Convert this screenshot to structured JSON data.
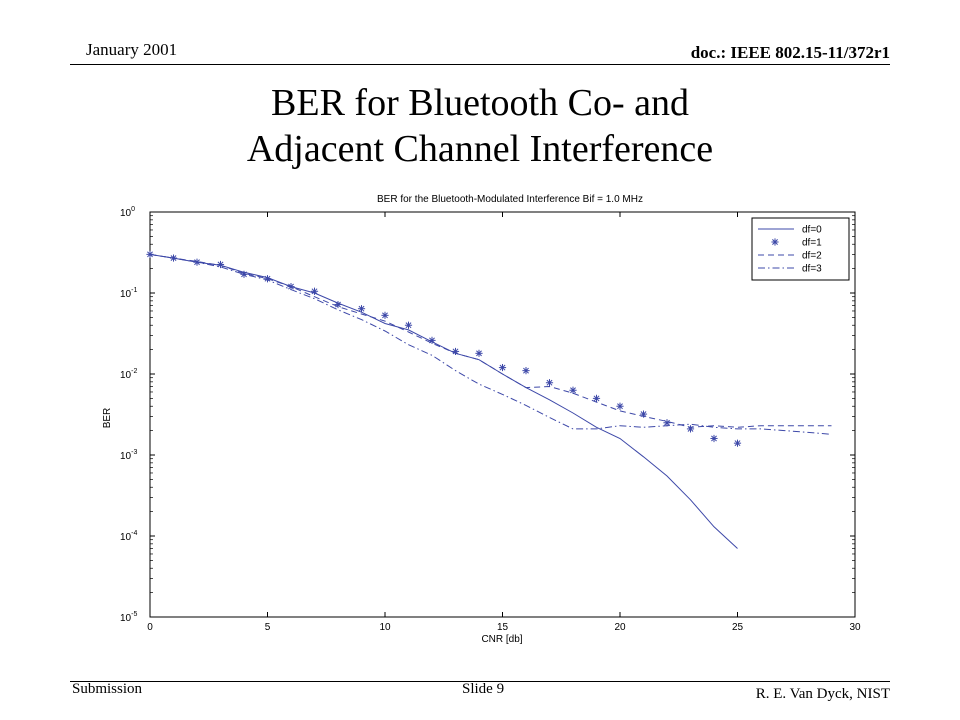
{
  "header": {
    "date": "January 2001",
    "doc": "doc.: IEEE 802.15-11/372r1"
  },
  "slide": {
    "title_line1": "BER for Bluetooth Co- and",
    "title_line2": "Adjacent Channel Interference"
  },
  "footer": {
    "submission": "Submission",
    "slide_number": "Slide 9",
    "author": "R. E. Van Dyck, NIST"
  },
  "chart_data": {
    "type": "line",
    "title": "BER for the Bluetooth-Modulated Interference Bif = 1.0 MHz",
    "xlabel": "CNR [db]",
    "ylabel": "BER",
    "xlim": [
      0,
      30
    ],
    "ylim": [
      1e-05,
      1
    ],
    "yscale": "log",
    "grid": false,
    "legend_position": "top-right",
    "color": "#3d48a8",
    "xticks": [
      "0",
      "5",
      "10",
      "15",
      "20",
      "25",
      "30"
    ],
    "yticks": [
      {
        "base": "10",
        "exp": "0"
      },
      {
        "base": "10",
        "exp": "-1"
      },
      {
        "base": "10",
        "exp": "-2"
      },
      {
        "base": "10",
        "exp": "-3"
      },
      {
        "base": "10",
        "exp": "-4"
      },
      {
        "base": "10",
        "exp": "-5"
      }
    ],
    "series": [
      {
        "name": "df=0",
        "style": "solid",
        "x": [
          0,
          1,
          2,
          3,
          4,
          5,
          6,
          7,
          8,
          9,
          10,
          11,
          12,
          13,
          14,
          15,
          16,
          17,
          18,
          19,
          20,
          21,
          22,
          23,
          24,
          25
        ],
        "y": [
          0.3,
          0.27,
          0.24,
          0.22,
          0.18,
          0.155,
          0.12,
          0.1,
          0.075,
          0.058,
          0.042,
          0.035,
          0.025,
          0.018,
          0.015,
          0.01,
          0.0068,
          0.0048,
          0.0033,
          0.0022,
          0.0016,
          0.00095,
          0.00055,
          0.00028,
          0.00013,
          7e-05
        ]
      },
      {
        "name": "df=1",
        "style": "star",
        "x": [
          0,
          1,
          2,
          3,
          4,
          5,
          6,
          7,
          8,
          9,
          10,
          11,
          12,
          13,
          14,
          15,
          16,
          17,
          18,
          19,
          20,
          21,
          22,
          23,
          24,
          25
        ],
        "y": [
          0.3,
          0.27,
          0.24,
          0.225,
          0.17,
          0.15,
          0.12,
          0.105,
          0.072,
          0.064,
          0.053,
          0.04,
          0.026,
          0.019,
          0.018,
          0.012,
          0.011,
          0.0078,
          0.0063,
          0.005,
          0.004,
          0.0032,
          0.0025,
          0.0021,
          0.0016,
          0.0014
        ]
      },
      {
        "name": "df=2",
        "style": "dashed",
        "x": [
          0,
          1,
          2,
          3,
          4,
          5,
          6,
          7,
          8,
          9,
          10,
          11,
          12,
          13,
          14,
          15,
          16,
          17,
          18,
          19,
          20,
          21,
          22,
          23,
          24,
          25,
          26,
          27,
          28,
          29
        ],
        "y": [
          0.3,
          0.27,
          0.245,
          0.22,
          0.175,
          0.15,
          0.12,
          0.09,
          0.068,
          0.055,
          0.045,
          0.033,
          0.024,
          0.018,
          0.015,
          0.01,
          0.0068,
          0.007,
          0.0058,
          0.0045,
          0.0035,
          0.003,
          0.0026,
          0.0022,
          0.0023,
          0.0022,
          0.0023,
          0.0023,
          0.0023,
          0.0023
        ]
      },
      {
        "name": "df=3",
        "style": "dashdot",
        "x": [
          0,
          1,
          2,
          3,
          4,
          5,
          6,
          7,
          8,
          9,
          10,
          11,
          12,
          13,
          14,
          15,
          16,
          17,
          18,
          19,
          20,
          21,
          22,
          23,
          24,
          25,
          26,
          27,
          28,
          29
        ],
        "y": [
          0.3,
          0.27,
          0.24,
          0.21,
          0.17,
          0.145,
          0.11,
          0.085,
          0.062,
          0.047,
          0.034,
          0.023,
          0.017,
          0.011,
          0.0075,
          0.0056,
          0.0041,
          0.0029,
          0.0021,
          0.0021,
          0.0023,
          0.0022,
          0.0023,
          0.0024,
          0.0022,
          0.0021,
          0.0021,
          0.002,
          0.0019,
          0.0018
        ]
      }
    ]
  }
}
